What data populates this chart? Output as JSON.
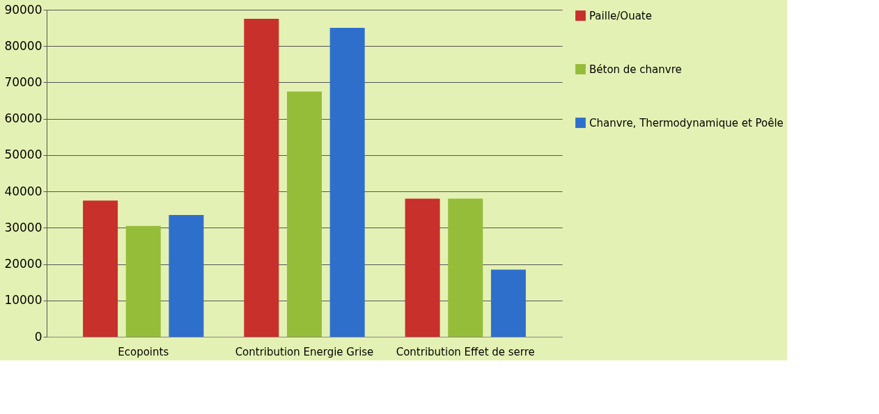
{
  "chart_data": {
    "type": "bar",
    "categories": [
      "Ecopoints",
      "Contribution Energie Grise",
      "Contribution Effet de serre"
    ],
    "series": [
      {
        "name": "Paille/Ouate",
        "color": "#c8302c",
        "values": [
          37500,
          87500,
          38000
        ]
      },
      {
        "name": "Béton de chanvre",
        "color": "#96bd3a",
        "values": [
          30500,
          67500,
          38000
        ]
      },
      {
        "name": "Chanvre, Thermodynamique et Poêle",
        "color": "#2f6fcc",
        "values": [
          33500,
          85000,
          18500
        ]
      }
    ],
    "ylim": [
      0,
      90000
    ],
    "yticks": [
      0,
      10000,
      20000,
      30000,
      40000,
      50000,
      60000,
      70000,
      80000,
      90000
    ],
    "grid": "y",
    "legend": "right"
  }
}
